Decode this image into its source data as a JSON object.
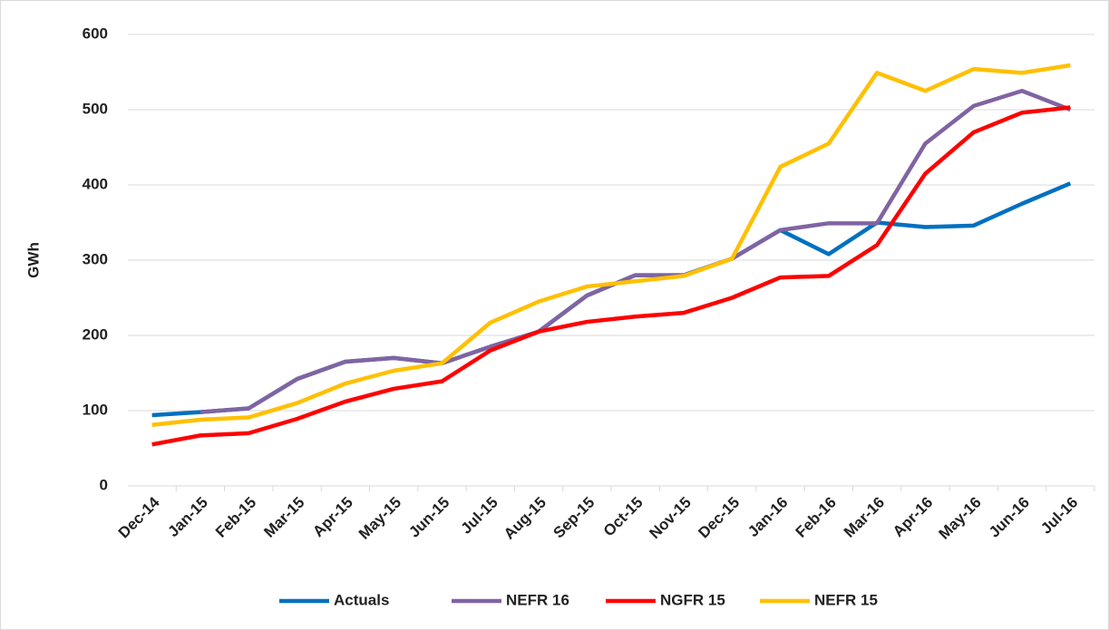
{
  "chart_data": {
    "type": "line",
    "y_label": "GWh",
    "categories": [
      "Dec-14",
      "Jan-15",
      "Feb-15",
      "Mar-15",
      "Apr-15",
      "May-15",
      "Jun-15",
      "Jul-15",
      "Aug-15",
      "Sep-15",
      "Oct-15",
      "Nov-15",
      "Dec-15",
      "Jan-16",
      "Feb-16",
      "Mar-16",
      "Apr-16",
      "May-16",
      "Jun-16",
      "Jul-16"
    ],
    "series": [
      {
        "name": "Actuals",
        "color": "#0070c0",
        "values": [
          94,
          98,
          103,
          142,
          165,
          170,
          163,
          185,
          205,
          253,
          280,
          280,
          302,
          340,
          308,
          350,
          344,
          346,
          375,
          402
        ]
      },
      {
        "name": "NEFR 16",
        "color": "#8064a2",
        "values": [
          null,
          98,
          103,
          142,
          165,
          170,
          163,
          185,
          205,
          253,
          280,
          280,
          302,
          340,
          349,
          349,
          455,
          505,
          525,
          500
        ]
      },
      {
        "name": "NGFR 15",
        "color": "#ff0000",
        "values": [
          55,
          67,
          70,
          89,
          112,
          129,
          139,
          180,
          205,
          218,
          225,
          230,
          250,
          277,
          279,
          320,
          415,
          470,
          496,
          503
        ]
      },
      {
        "name": "NEFR 15",
        "color": "#ffc000",
        "values": [
          81,
          88,
          91,
          110,
          136,
          153,
          163,
          217,
          245,
          265,
          272,
          279,
          302,
          424,
          455,
          549,
          525,
          554,
          549,
          559
        ]
      }
    ],
    "ylim": [
      0,
      600
    ],
    "yticks": [
      0,
      100,
      200,
      300,
      400,
      500,
      600
    ],
    "grid": true,
    "legend": "bottom"
  }
}
